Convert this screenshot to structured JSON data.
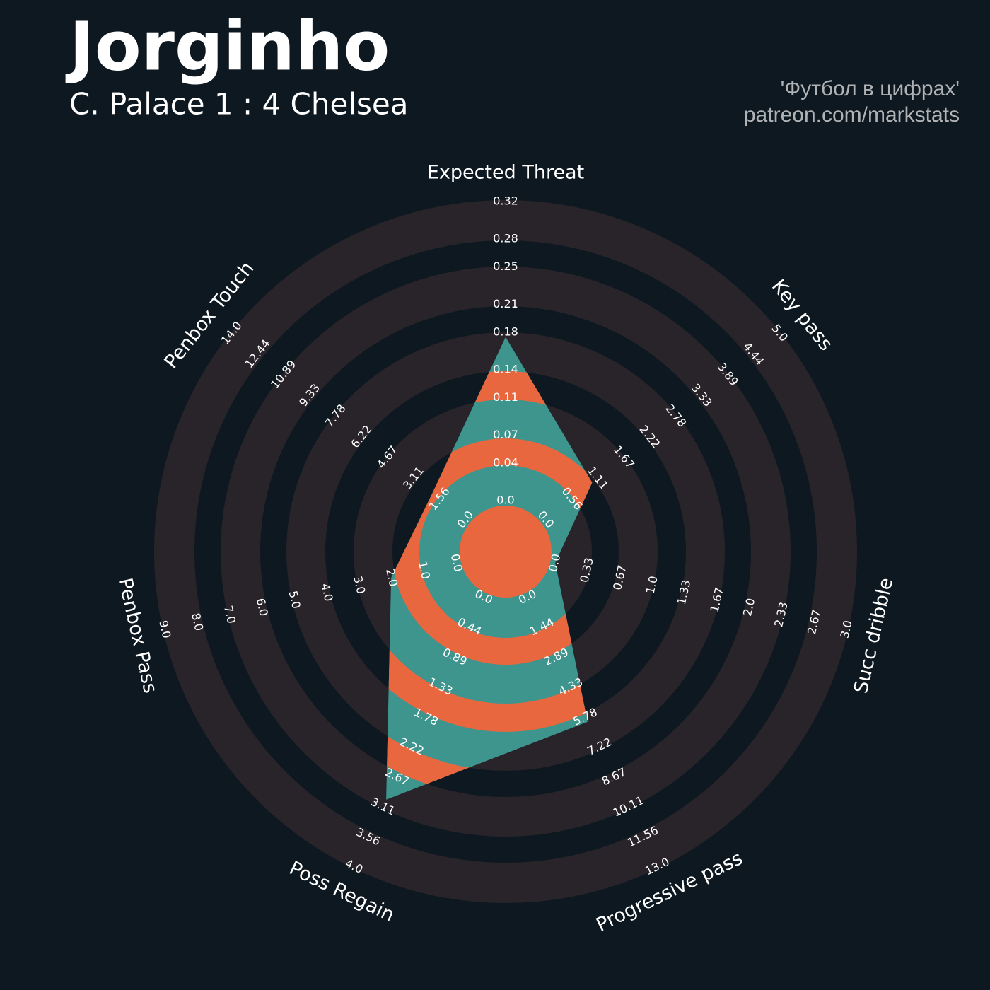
{
  "chart_data": {
    "type": "radar",
    "title": "Jorginho",
    "subtitle": "C. Palace 1 : 4 Chelsea",
    "credits": [
      "'Футбол в цифрах'",
      "patreon.com/markstats"
    ],
    "categories": [
      "Expected Threat",
      "Key pass",
      "Succ dribble",
      "Progressive pass",
      "Poss Regain",
      "Penbox Pass",
      "Penbox Touch"
    ],
    "values": [
      0.175,
      1,
      0,
      6,
      3,
      2,
      2
    ],
    "rlims": [
      [
        0,
        0.32
      ],
      [
        0,
        5
      ],
      [
        0,
        3
      ],
      [
        0,
        13
      ],
      [
        0,
        4
      ],
      [
        0,
        9
      ],
      [
        0,
        14
      ]
    ],
    "rticks": [
      [
        {
          "value": 0,
          "label": "0.0"
        },
        0.04,
        0.07,
        0.11,
        0.14,
        0.18,
        0.21,
        0.25,
        0.28,
        0.32
      ],
      [
        {
          "value": 0,
          "label": "0.0"
        },
        0.56,
        1.11,
        1.67,
        2.22,
        2.78,
        3.33,
        3.89,
        4.44,
        {
          "value": 5,
          "label": "5.0"
        }
      ],
      [
        {
          "value": 0,
          "label": "0.0"
        },
        0.33,
        0.67,
        {
          "value": 1,
          "label": "1.0"
        },
        1.33,
        1.67,
        {
          "value": 2,
          "label": "2.0"
        },
        2.33,
        2.67,
        {
          "value": 3,
          "label": "3.0"
        }
      ],
      [
        {
          "value": 0,
          "label": "0.0"
        },
        1.44,
        2.89,
        4.33,
        5.78,
        7.22,
        8.67,
        10.11,
        11.56,
        {
          "value": 13,
          "label": "13.0"
        }
      ],
      [
        {
          "value": 0,
          "label": "0.0"
        },
        0.44,
        0.89,
        1.33,
        1.78,
        2.22,
        2.67,
        3.11,
        3.56,
        {
          "value": 4,
          "label": "4.0"
        }
      ],
      [
        {
          "value": 0,
          "label": "0.0"
        },
        {
          "value": 1,
          "label": "1.0"
        },
        {
          "value": 2,
          "label": "2.0"
        },
        {
          "value": 3,
          "label": "3.0"
        },
        {
          "value": 4,
          "label": "4.0"
        },
        {
          "value": 5,
          "label": "5.0"
        },
        {
          "value": 6,
          "label": "6.0"
        },
        {
          "value": 7,
          "label": "7.0"
        },
        {
          "value": 8,
          "label": "8.0"
        },
        {
          "value": 9,
          "label": "9.0"
        }
      ],
      [
        {
          "value": 0,
          "label": "0.0"
        },
        1.56,
        3.11,
        4.67,
        6.22,
        7.78,
        9.33,
        10.89,
        12.44,
        {
          "value": 14,
          "label": "14.0"
        }
      ]
    ],
    "color": "#3d958e",
    "highlight_color": "#e8673f",
    "ring_color": "#28242a"
  }
}
